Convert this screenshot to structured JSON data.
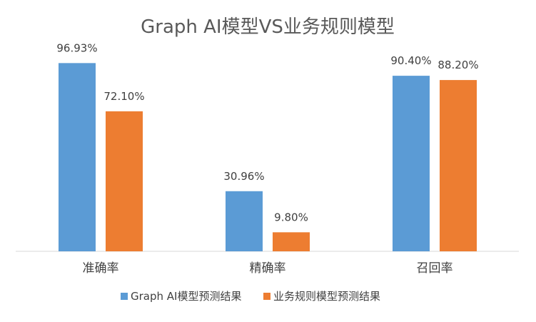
{
  "chart_data": {
    "type": "bar",
    "title": "Graph AI模型VS业务规则模型",
    "categories": [
      "准确率",
      "精确率",
      "召回率"
    ],
    "series": [
      {
        "name": "Graph AI模型预测结果",
        "color": "#5B9BD5",
        "values": [
          96.93,
          30.96,
          90.4
        ],
        "labels": [
          "96.93%",
          "30.96%",
          "90.40%"
        ]
      },
      {
        "name": "业务规则模型预测结果",
        "color": "#ED7D31",
        "values": [
          72.1,
          9.8,
          88.2
        ],
        "labels": [
          "72.10%",
          "9.80%",
          "88.20%"
        ]
      }
    ],
    "ylim": [
      0,
      100
    ],
    "grid": false,
    "legend": "bottom",
    "data_labels": true
  }
}
